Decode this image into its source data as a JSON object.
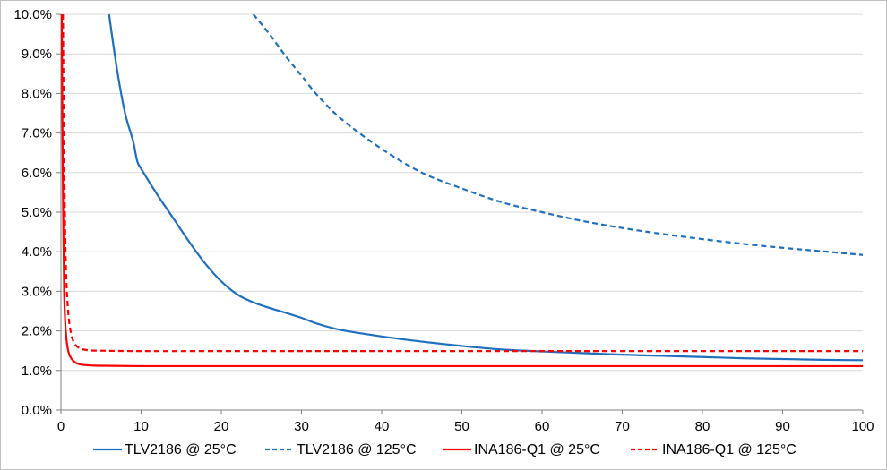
{
  "chart_data": {
    "type": "line",
    "title": "",
    "xlabel": "",
    "ylabel": "",
    "xlim": [
      0,
      100
    ],
    "ylim": [
      0,
      10
    ],
    "x_ticks": [
      0,
      10,
      20,
      30,
      40,
      50,
      60,
      70,
      80,
      90,
      100
    ],
    "y_ticks": [
      0,
      1,
      2,
      3,
      4,
      5,
      6,
      7,
      8,
      9,
      10
    ],
    "y_tick_labels": [
      "0.0%",
      "1.0%",
      "2.0%",
      "3.0%",
      "4.0%",
      "5.0%",
      "6.0%",
      "7.0%",
      "8.0%",
      "9.0%",
      "10.0%"
    ],
    "grid": "horizontal",
    "legend_position": "bottom",
    "series": [
      {
        "name": "TLV2186 @ 25°C",
        "color": "#1f6fbf",
        "dash": "solid",
        "points": [
          [
            6.0,
            10.0
          ],
          [
            7.0,
            8.6
          ],
          [
            8.0,
            7.5
          ],
          [
            9.0,
            6.8
          ],
          [
            9.5,
            6.3
          ],
          [
            10.0,
            6.1
          ],
          [
            12.0,
            5.45
          ],
          [
            14.0,
            4.85
          ],
          [
            16.0,
            4.25
          ],
          [
            18.0,
            3.7
          ],
          [
            20.0,
            3.25
          ],
          [
            22.0,
            2.92
          ],
          [
            24.0,
            2.72
          ],
          [
            26.0,
            2.58
          ],
          [
            28.0,
            2.46
          ],
          [
            30.0,
            2.33
          ],
          [
            32.0,
            2.18
          ],
          [
            35.0,
            2.02
          ],
          [
            40.0,
            1.86
          ],
          [
            45.0,
            1.73
          ],
          [
            50.0,
            1.62
          ],
          [
            55.0,
            1.53
          ],
          [
            60.0,
            1.48
          ],
          [
            65.0,
            1.44
          ],
          [
            70.0,
            1.4
          ],
          [
            75.0,
            1.37
          ],
          [
            80.0,
            1.34
          ],
          [
            85.0,
            1.31
          ],
          [
            90.0,
            1.29
          ],
          [
            95.0,
            1.27
          ],
          [
            100.0,
            1.26
          ]
        ]
      },
      {
        "name": "TLV2186 @ 125°C",
        "color": "#1f6fbf",
        "dash": "dashed",
        "points": [
          [
            24.0,
            10.0
          ],
          [
            26.0,
            9.5
          ],
          [
            28.0,
            8.95
          ],
          [
            30.0,
            8.45
          ],
          [
            32.0,
            7.95
          ],
          [
            35.0,
            7.35
          ],
          [
            40.0,
            6.6
          ],
          [
            45.0,
            6.0
          ],
          [
            50.0,
            5.6
          ],
          [
            55.0,
            5.25
          ],
          [
            60.0,
            5.0
          ],
          [
            65.0,
            4.78
          ],
          [
            70.0,
            4.6
          ],
          [
            75.0,
            4.45
          ],
          [
            80.0,
            4.32
          ],
          [
            85.0,
            4.2
          ],
          [
            90.0,
            4.1
          ],
          [
            95.0,
            4.01
          ],
          [
            100.0,
            3.92
          ]
        ]
      },
      {
        "name": "INA186-Q1 @ 25°C",
        "color": "#ff0000",
        "dash": "solid",
        "points": [
          [
            0.1,
            10.0
          ],
          [
            0.25,
            5.5
          ],
          [
            0.4,
            3.0
          ],
          [
            0.6,
            2.0
          ],
          [
            0.9,
            1.5
          ],
          [
            1.3,
            1.3
          ],
          [
            1.8,
            1.2
          ],
          [
            2.5,
            1.15
          ],
          [
            3.5,
            1.13
          ],
          [
            5.0,
            1.12
          ],
          [
            10.0,
            1.11
          ],
          [
            20.0,
            1.11
          ],
          [
            40.0,
            1.11
          ],
          [
            60.0,
            1.11
          ],
          [
            80.0,
            1.11
          ],
          [
            100.0,
            1.11
          ]
        ]
      },
      {
        "name": "INA186-Q1 @ 125°C",
        "color": "#ff0000",
        "dash": "dashed",
        "points": [
          [
            0.25,
            10.0
          ],
          [
            0.4,
            6.5
          ],
          [
            0.6,
            3.8
          ],
          [
            0.9,
            2.5
          ],
          [
            1.3,
            1.9
          ],
          [
            1.8,
            1.65
          ],
          [
            2.5,
            1.55
          ],
          [
            3.5,
            1.51
          ],
          [
            5.0,
            1.5
          ],
          [
            10.0,
            1.49
          ],
          [
            20.0,
            1.49
          ],
          [
            40.0,
            1.49
          ],
          [
            60.0,
            1.49
          ],
          [
            80.0,
            1.49
          ],
          [
            100.0,
            1.49
          ]
        ]
      }
    ]
  }
}
